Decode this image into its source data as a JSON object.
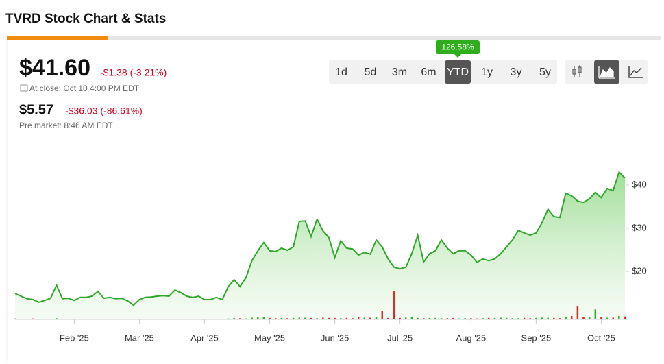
{
  "header": {
    "title": "TVRD Stock Chart & Stats"
  },
  "quote": {
    "price": "$41.60",
    "change": "-$1.38 (-3.21%)",
    "close_note": "At close: Oct 10 4:00 PM EDT",
    "pre_price": "$5.57",
    "pre_change": "-$36.03 (-86.61%)",
    "pre_note": "Pre market: 8:46 AM EDT"
  },
  "ranges": {
    "options": [
      "1d",
      "5d",
      "3m",
      "6m",
      "YTD",
      "1y",
      "3y",
      "5y"
    ],
    "active": 4,
    "badge": "126.58%"
  },
  "chart_data": {
    "type": "line",
    "color": "#2ea62a",
    "categories": [
      null,
      null,
      null,
      null,
      null,
      null,
      null,
      null,
      null,
      null,
      "Feb '25",
      null,
      null,
      null,
      null,
      null,
      null,
      null,
      null,
      null,
      null,
      "Mar '25",
      null,
      null,
      null,
      null,
      null,
      null,
      null,
      null,
      null,
      null,
      "Apr '25",
      null,
      null,
      null,
      null,
      null,
      null,
      null,
      null,
      null,
      null,
      "May '25",
      null,
      null,
      null,
      null,
      null,
      null,
      null,
      null,
      null,
      null,
      "Jun '25",
      null,
      null,
      null,
      null,
      null,
      null,
      null,
      null,
      null,
      null,
      "Jul '25",
      null,
      null,
      null,
      null,
      null,
      null,
      null,
      null,
      null,
      null,
      null,
      "Aug '25",
      null,
      null,
      null,
      null,
      null,
      null,
      null,
      null,
      null,
      null,
      "Sep '25",
      null,
      null,
      null,
      null,
      null,
      null,
      null,
      null,
      null,
      null,
      "Oct '25",
      null,
      null,
      null,
      null
    ],
    "values": [
      14.9,
      14.3,
      13.7,
      13.5,
      12.9,
      13.3,
      13.8,
      16.8,
      13.7,
      13.8,
      13.3,
      14.0,
      14.0,
      14.3,
      15.4,
      13.8,
      14.0,
      13.7,
      13.8,
      13.2,
      12.2,
      13.5,
      14.0,
      14.1,
      14.3,
      14.4,
      14.3,
      15.7,
      15.1,
      14.3,
      14.0,
      14.3,
      13.5,
      13.5,
      14.0,
      13.5,
      16.5,
      18.1,
      16.5,
      18.6,
      22.5,
      24.8,
      26.7,
      24.8,
      24.6,
      25.4,
      24.9,
      25.7,
      31.6,
      31.7,
      28.1,
      32.1,
      29.4,
      27.8,
      23.2,
      27.1,
      25.4,
      25.2,
      23.8,
      24.4,
      24.0,
      27.3,
      25.7,
      22.9,
      21.0,
      20.6,
      21.0,
      24.1,
      28.4,
      22.2,
      24.1,
      24.8,
      27.3,
      25.4,
      24.1,
      24.8,
      24.8,
      23.8,
      22.1,
      22.9,
      22.5,
      22.9,
      24.1,
      25.7,
      27.3,
      29.5,
      28.9,
      28.4,
      28.9,
      31.3,
      34.4,
      32.7,
      32.5,
      38.1,
      37.5,
      36.3,
      36.0,
      36.8,
      38.3,
      37.1,
      39.2,
      38.7,
      42.98,
      41.6
    ],
    "ylim": [
      8.9,
      50.3
    ],
    "yticks": [
      {
        "value": 20,
        "label": "$20"
      },
      {
        "value": 30,
        "label": "$30"
      },
      {
        "value": 40,
        "label": "$40"
      }
    ],
    "volume": {
      "up_color": "#22b01e",
      "down_color": "#e0201e",
      "ylim": [
        0,
        100
      ],
      "values": [
        3,
        2,
        2,
        3,
        1,
        2,
        2,
        4,
        2,
        1,
        1,
        2,
        1,
        1,
        2,
        1,
        1,
        1,
        1,
        1,
        2,
        1,
        1,
        1,
        1,
        1,
        1,
        2,
        1,
        1,
        1,
        1,
        1,
        1,
        2,
        1,
        3,
        5,
        4,
        3,
        6,
        8,
        7,
        5,
        4,
        5,
        4,
        5,
        6,
        6,
        5,
        4,
        6,
        5,
        5,
        4,
        5,
        4,
        8,
        6,
        6,
        7,
        30,
        5,
        100,
        5,
        6,
        7,
        5,
        4,
        5,
        5,
        4,
        4,
        5,
        3,
        4,
        4,
        3,
        4,
        5,
        5,
        6,
        5,
        4,
        4,
        5,
        4,
        5,
        6,
        6,
        5,
        4,
        8,
        12,
        45,
        9,
        7,
        35,
        8,
        6,
        6,
        12,
        10
      ]
    }
  }
}
